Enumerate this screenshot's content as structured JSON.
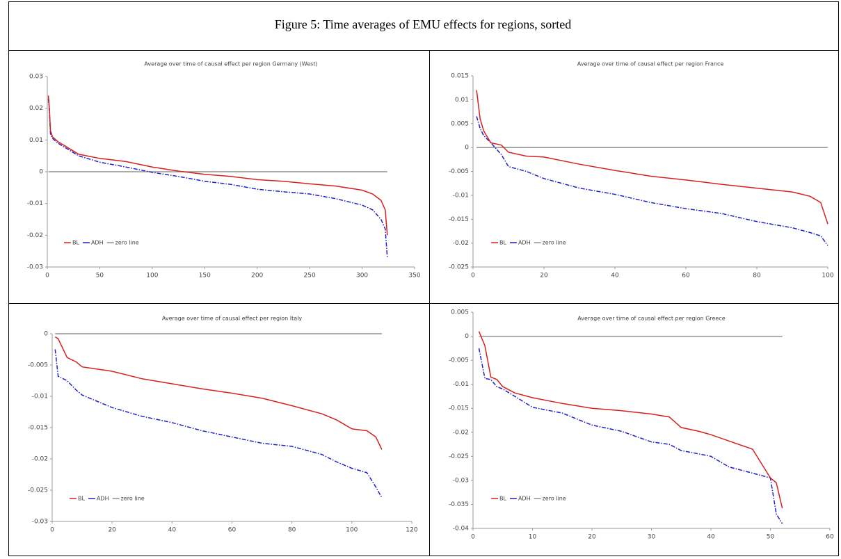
{
  "caption": "Figure 5: Time averages of EMU effects for regions, sorted",
  "chart_data": [
    {
      "type": "line",
      "title": "Average over time of causal effect per region Germany (West)",
      "x": [
        1,
        2,
        3,
        5,
        10,
        20,
        30,
        50,
        75,
        100,
        125,
        150,
        175,
        200,
        225,
        250,
        275,
        300,
        310,
        318,
        322,
        324
      ],
      "series": [
        {
          "name": "BL",
          "color": "#d62020",
          "style": "solid",
          "values": [
            0.024,
            0.02,
            0.013,
            0.011,
            0.0095,
            0.0075,
            0.0055,
            0.0042,
            0.0032,
            0.0015,
            0.0002,
            -0.0008,
            -0.0015,
            -0.0025,
            -0.003,
            -0.0038,
            -0.0045,
            -0.0058,
            -0.007,
            -0.009,
            -0.012,
            -0.02
          ]
        },
        {
          "name": "ADH",
          "color": "#2020c8",
          "style": "dashdot",
          "values": [
            0.023,
            0.019,
            0.012,
            0.0105,
            0.009,
            0.007,
            0.005,
            0.003,
            0.0015,
            -0.0002,
            -0.0015,
            -0.003,
            -0.004,
            -0.0055,
            -0.0063,
            -0.007,
            -0.0085,
            -0.0105,
            -0.012,
            -0.015,
            -0.018,
            -0.027
          ]
        },
        {
          "name": "zero line",
          "color": "#909090",
          "style": "solid",
          "values": [
            0,
            0,
            0,
            0,
            0,
            0,
            0,
            0,
            0,
            0,
            0,
            0,
            0,
            0,
            0,
            0,
            0,
            0,
            0,
            0,
            0,
            0
          ]
        }
      ],
      "xlim": [
        0,
        350
      ],
      "xticks": [
        0,
        50,
        100,
        150,
        200,
        250,
        300,
        350
      ],
      "ylim": [
        -0.03,
        0.03
      ],
      "yticks": [
        -0.03,
        -0.02,
        -0.01,
        0,
        0.01,
        0.02,
        0.03
      ]
    },
    {
      "type": "line",
      "title": "Average over time of causal effect per region France",
      "x": [
        1,
        2,
        3,
        5,
        8,
        10,
        15,
        20,
        30,
        40,
        50,
        60,
        70,
        80,
        90,
        95,
        98,
        100
      ],
      "series": [
        {
          "name": "BL",
          "color": "#d62020",
          "style": "solid",
          "values": [
            0.012,
            0.006,
            0.0035,
            0.001,
            0.0005,
            -0.001,
            -0.0018,
            -0.002,
            -0.0035,
            -0.0048,
            -0.006,
            -0.0068,
            -0.0077,
            -0.0085,
            -0.0093,
            -0.0102,
            -0.0115,
            -0.016
          ]
        },
        {
          "name": "ADH",
          "color": "#2020c8",
          "style": "dashdot",
          "values": [
            0.0065,
            0.004,
            0.0025,
            0.001,
            -0.0015,
            -0.004,
            -0.005,
            -0.0065,
            -0.0085,
            -0.0098,
            -0.0115,
            -0.0128,
            -0.0138,
            -0.0155,
            -0.0168,
            -0.0178,
            -0.0185,
            -0.0205
          ]
        },
        {
          "name": "zero line",
          "color": "#909090",
          "style": "solid",
          "values": [
            0,
            0,
            0,
            0,
            0,
            0,
            0,
            0,
            0,
            0,
            0,
            0,
            0,
            0,
            0,
            0,
            0,
            0
          ]
        }
      ],
      "xlim": [
        0,
        100
      ],
      "xticks": [
        0,
        20,
        40,
        60,
        80,
        100
      ],
      "ylim": [
        -0.025,
        0.015
      ],
      "yticks": [
        -0.025,
        -0.02,
        -0.015,
        -0.01,
        -0.005,
        0,
        0.005,
        0.01,
        0.015
      ]
    },
    {
      "type": "line",
      "title": "Average over time of causal effect per region Italy",
      "x": [
        1,
        2,
        5,
        8,
        10,
        20,
        30,
        40,
        50,
        60,
        70,
        80,
        90,
        95,
        100,
        105,
        108,
        110
      ],
      "series": [
        {
          "name": "BL",
          "color": "#d62020",
          "style": "solid",
          "values": [
            -0.0005,
            -0.0008,
            -0.0038,
            -0.0045,
            -0.0053,
            -0.006,
            -0.0072,
            -0.008,
            -0.0088,
            -0.0095,
            -0.0103,
            -0.0115,
            -0.0128,
            -0.0138,
            -0.0152,
            -0.0155,
            -0.0165,
            -0.0185
          ]
        },
        {
          "name": "ADH",
          "color": "#2020c8",
          "style": "dashdot",
          "values": [
            -0.0025,
            -0.0068,
            -0.0075,
            -0.009,
            -0.0098,
            -0.0118,
            -0.0132,
            -0.0142,
            -0.0155,
            -0.0165,
            -0.0175,
            -0.018,
            -0.0193,
            -0.0205,
            -0.0215,
            -0.0222,
            -0.0245,
            -0.0262
          ]
        },
        {
          "name": "zero line",
          "color": "#909090",
          "style": "solid",
          "values": [
            0,
            0,
            0,
            0,
            0,
            0,
            0,
            0,
            0,
            0,
            0,
            0,
            0,
            0,
            0,
            0,
            0,
            0
          ]
        }
      ],
      "xlim": [
        0,
        120
      ],
      "xticks": [
        0,
        20,
        40,
        60,
        80,
        100,
        120
      ],
      "ylim": [
        -0.03,
        0
      ],
      "yticks": [
        -0.03,
        -0.025,
        -0.02,
        -0.015,
        -0.01,
        -0.005,
        0
      ]
    },
    {
      "type": "line",
      "title": "Average over time of causal effect per region Greece",
      "x": [
        1,
        2,
        3,
        4,
        5,
        7,
        10,
        15,
        20,
        25,
        30,
        33,
        35,
        38,
        40,
        43,
        47,
        50,
        51,
        52
      ],
      "series": [
        {
          "name": "BL",
          "color": "#d62020",
          "style": "solid",
          "values": [
            0.001,
            -0.002,
            -0.0085,
            -0.009,
            -0.0105,
            -0.0118,
            -0.0128,
            -0.014,
            -0.015,
            -0.0155,
            -0.0162,
            -0.0168,
            -0.019,
            -0.0198,
            -0.0205,
            -0.0218,
            -0.0235,
            -0.0295,
            -0.0305,
            -0.0358
          ]
        },
        {
          "name": "ADH",
          "color": "#2020c8",
          "style": "dashdot",
          "values": [
            -0.0025,
            -0.0088,
            -0.009,
            -0.0105,
            -0.011,
            -0.0125,
            -0.0148,
            -0.016,
            -0.0185,
            -0.0198,
            -0.022,
            -0.0225,
            -0.0238,
            -0.0245,
            -0.025,
            -0.0272,
            -0.0285,
            -0.0295,
            -0.037,
            -0.039
          ]
        },
        {
          "name": "zero line",
          "color": "#909090",
          "style": "solid",
          "values": [
            0,
            0,
            0,
            0,
            0,
            0,
            0,
            0,
            0,
            0,
            0,
            0,
            0,
            0,
            0,
            0,
            0,
            0,
            0,
            0
          ]
        }
      ],
      "xlim": [
        0,
        60
      ],
      "xticks": [
        0,
        10,
        20,
        30,
        40,
        50,
        60
      ],
      "ylim": [
        -0.04,
        0.005
      ],
      "yticks": [
        -0.04,
        -0.035,
        -0.03,
        -0.025,
        -0.02,
        -0.015,
        -0.01,
        -0.005,
        0,
        0.005
      ]
    }
  ]
}
